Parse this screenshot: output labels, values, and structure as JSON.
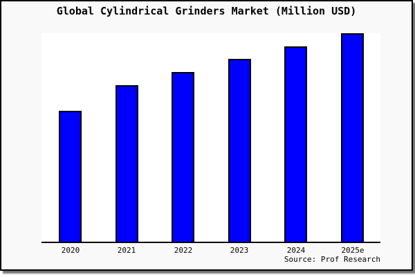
{
  "chart_data": {
    "type": "bar",
    "title": "Global Cylindrical Grinders Market (Million USD)",
    "categories": [
      "2020",
      "2021",
      "2022",
      "2023",
      "2024",
      "2025e"
    ],
    "values": [
      189,
      226,
      245,
      264,
      282,
      301
    ],
    "values_unit": "relative height (y-axis has no tick labels in the image)",
    "xlabel": "",
    "ylabel": "",
    "y_axis_labels_visible": false,
    "grid": false,
    "legend": false,
    "bar_fill_color": "#0000ff",
    "bar_border_color": "#000000",
    "plot_background": "#ffffff",
    "card_background": "#f9f9f9"
  },
  "source": {
    "text": "Source: Prof Research"
  }
}
